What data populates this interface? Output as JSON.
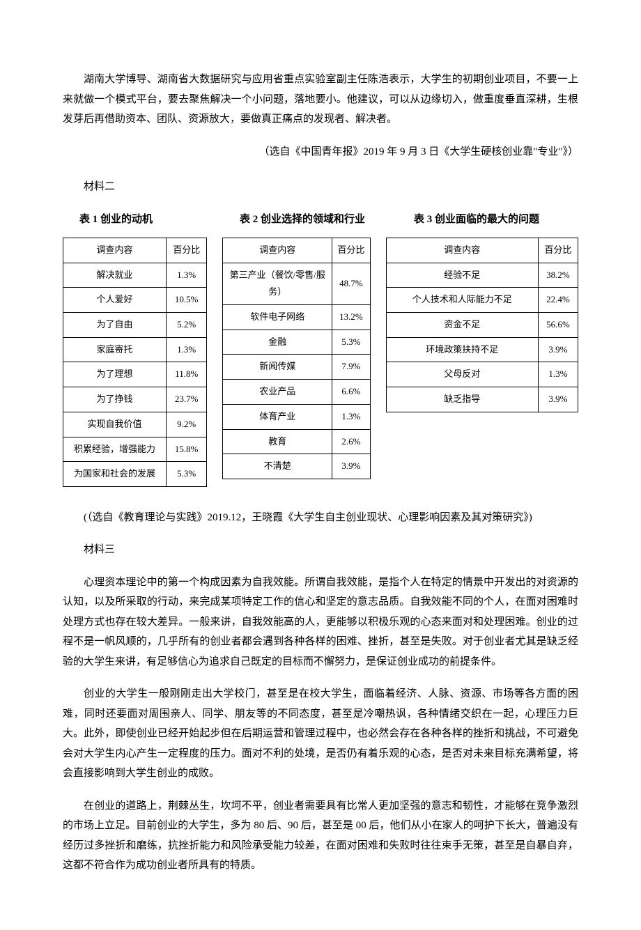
{
  "para1": "湖南大学博导、湖南省大数据研究与应用省重点实验室副主任陈浩表示，大学生的初期创业项目，不要一上来就做一个模式平台，要去聚焦解决一个小问题，落地要小。他建议，可以从边缘切入，做重度垂直深耕，生根发芽后再借助资本、团队、资源放大，要做真正痛点的发现者、解决者。",
  "citation1": "（选自《中国青年报》2019 年 9 月 3 日《大学生硬核创业靠\"专业\"》）",
  "label2": "材料二",
  "table1_title": "表 1 创业的动机",
  "table2_title": "表 2 创业选择的领域和行业",
  "table3_title": "表 3 创业面临的最大的问题",
  "header_content": "调查内容",
  "header_pct": "百分比",
  "t1": {
    "rows": [
      [
        "解决就业",
        "1.3%"
      ],
      [
        "个人爱好",
        "10.5%"
      ],
      [
        "为了自由",
        "5.2%"
      ],
      [
        "家庭寄托",
        "1.3%"
      ],
      [
        "为了理想",
        "11.8%"
      ],
      [
        "为了挣钱",
        "23.7%"
      ],
      [
        "实现自我价值",
        "9.2%"
      ],
      [
        "积累经验，增强能力",
        "15.8%"
      ],
      [
        "为国家和社会的发展",
        "5.3%"
      ]
    ]
  },
  "t2": {
    "rows": [
      [
        "第三产业（餐饮/零售/服务）",
        "48.7%"
      ],
      [
        "软件电子网络",
        "13.2%"
      ],
      [
        "金融",
        "5.3%"
      ],
      [
        "新闻传媒",
        "7.9%"
      ],
      [
        "农业产品",
        "6.6%"
      ],
      [
        "体育产业",
        "1.3%"
      ],
      [
        "教育",
        "2.6%"
      ],
      [
        "不清楚",
        "3.9%"
      ]
    ]
  },
  "t3": {
    "rows": [
      [
        "经验不足",
        "38.2%"
      ],
      [
        "个人技术和人际能力不足",
        "22.4%"
      ],
      [
        "资金不足",
        "56.6%"
      ],
      [
        "环境政策扶持不足",
        "3.9%"
      ],
      [
        "父母反对",
        "1.3%"
      ],
      [
        "缺乏指导",
        "3.9%"
      ]
    ]
  },
  "citation2": "(（选自《教育理论与实践》2019.12，王晓霞《大学生自主创业现状、心理影响因素及其对策研究》)",
  "label3": "材料三",
  "para_m3_1": "心理资本理论中的第一个构成因素为自我效能。所谓自我效能，是指个人在特定的情景中开发出的对资源的认知，以及所采取的行动，来完成某项特定工作的信心和坚定的意志品质。自我效能不同的个人，在面对困难时处理方式也存在较大差异。一般来讲，自我效能高的人，更能够以积极乐观的心态来面对和处理困难。创业的过程不是一帆风顺的，几乎所有的创业者都会遇到各种各样的困难、挫折，甚至是失败。对于创业者尤其是缺乏经验的大学生来讲，有足够信心为追求自己既定的目标而不懈努力，是保证创业成功的前提条件。",
  "para_m3_2": "创业的大学生一般刚刚走出大学校门，甚至是在校大学生，面临着经济、人脉、资源、市场等各方面的困难，同时还要面对周围亲人、同学、朋友等的不同态度，甚至是冷嘲热讽，各种情绪交织在一起，心理压力巨大。此外，即使创业已经开始起步但在后期运营和管理过程中，也必然会存在各种各样的挫折和挑战，不可避免会对大学生内心产生一定程度的压力。面对不利的处境，是否仍有着乐观的心态，是否对未来目标充满希望，将会直接影响到大学生创业的成败。",
  "para_m3_3": "在创业的道路上，荆棘丛生，坎坷不平，创业者需要具有比常人更加坚强的意志和韧性，才能够在竞争激烈的市场上立足。目前创业的大学生，多为 80 后、90 后，甚至是 00 后，他们从小在家人的呵护下长大，普遍没有经历过多挫折和磨练，抗挫折能力和风险承受能力较差，在面对困难和失败时往往束手无策，甚至是自暴自弃，这都不符合作为成功创业者所具有的特质。"
}
